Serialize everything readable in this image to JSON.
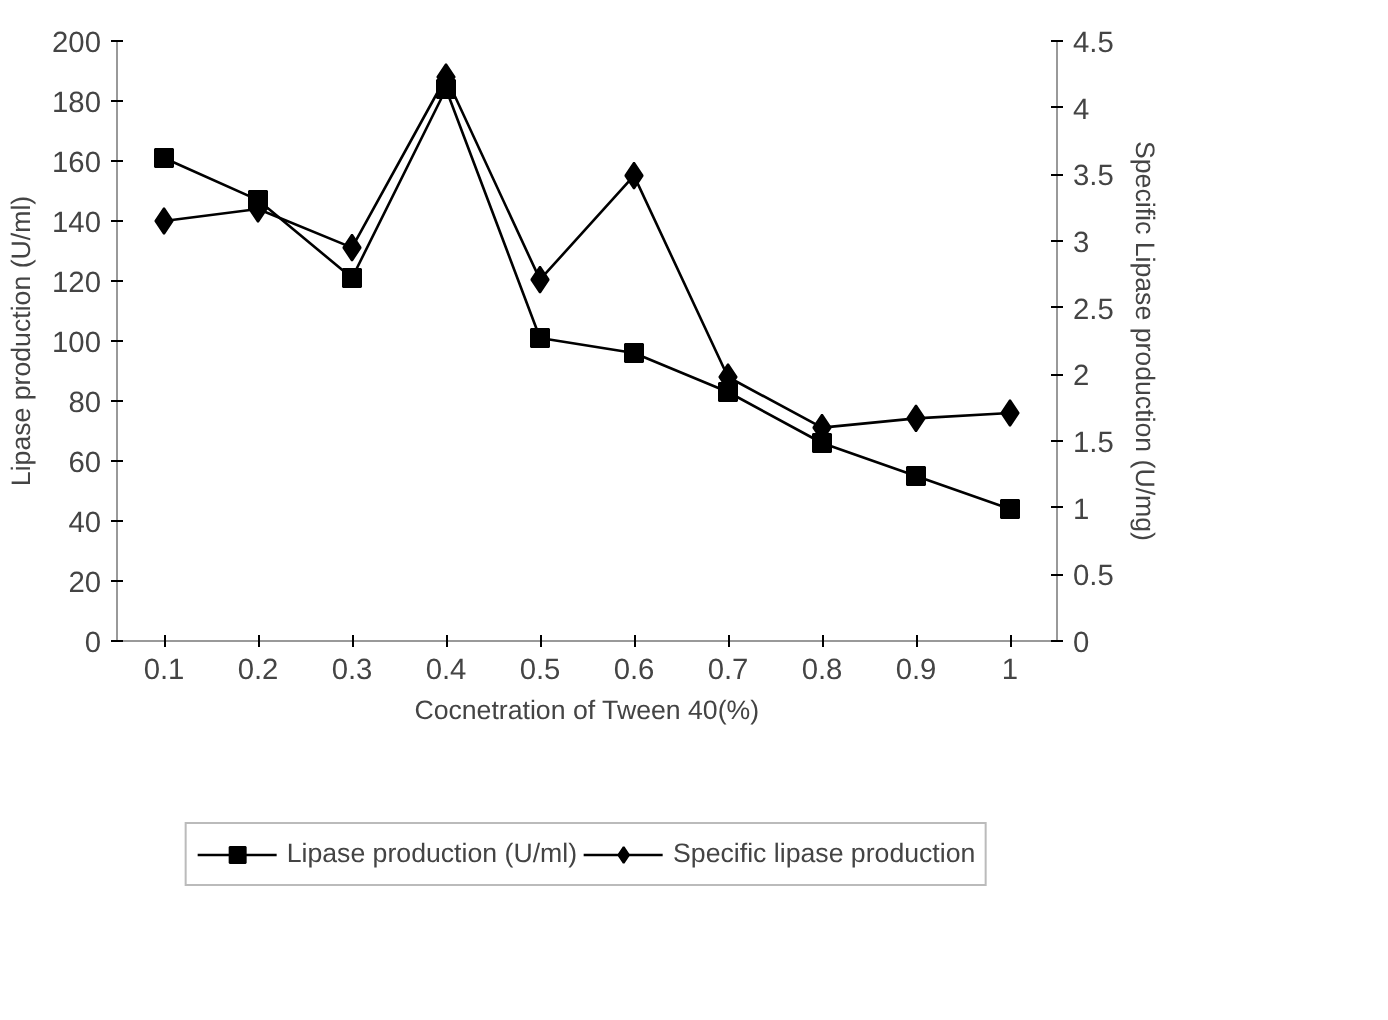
{
  "chart_data": {
    "type": "line",
    "xlabel": "Cocnetration of Tween 40(%)",
    "ylabel": "Lipase production (U/ml)",
    "y2label": "Specific Lipase production (U/mg)",
    "categories": [
      "0.1",
      "0.2",
      "0.3",
      "0.4",
      "0.5",
      "0.6",
      "0.7",
      "0.8",
      "0.9",
      "1"
    ],
    "series": [
      {
        "name": "Lipase production (U/ml)",
        "color": "#000000",
        "marker": "square",
        "values": [
          161,
          147,
          121,
          184,
          101,
          96,
          83,
          66,
          55,
          44
        ]
      },
      {
        "name": "Specific lipase production",
        "color": "#000000",
        "marker": "diamond",
        "axis": "y2",
        "values": [
          3.15,
          3.24,
          2.95,
          4.23,
          2.71,
          3.49,
          1.98,
          1.6,
          1.67,
          1.71
        ]
      }
    ],
    "ylim": [
      0,
      200
    ],
    "yticks": [
      0,
      20,
      40,
      60,
      80,
      100,
      120,
      140,
      160,
      180,
      200
    ],
    "y2lim": [
      0,
      4.5
    ],
    "y2ticks": [
      0,
      0.5,
      1,
      1.5,
      2,
      2.5,
      3,
      3.5,
      4,
      4.5
    ],
    "grid": false,
    "legend": "bottom",
    "line_style": "solid"
  }
}
